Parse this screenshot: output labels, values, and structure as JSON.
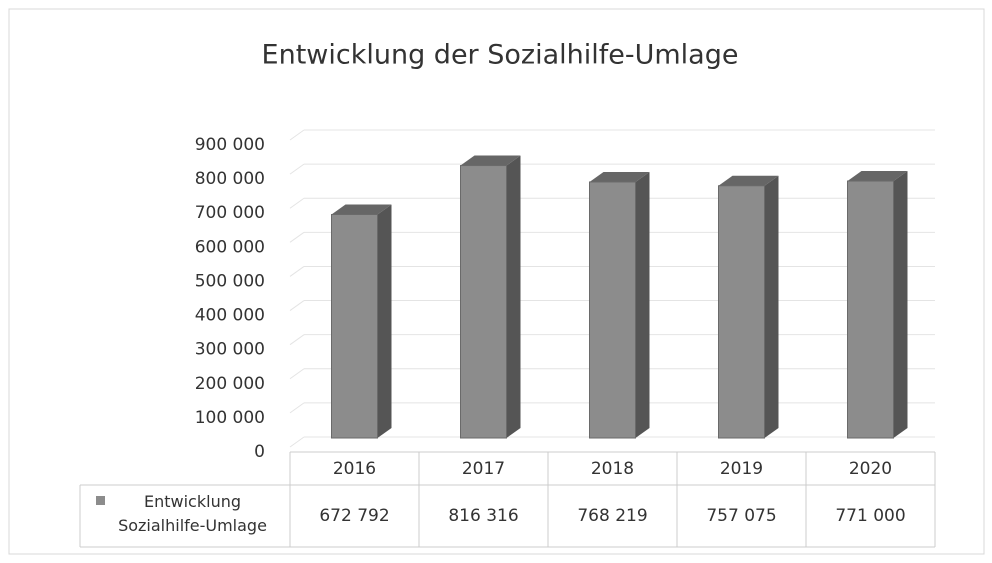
{
  "chart_data": {
    "type": "bar3d",
    "title": "Entwicklung der Sozialhilfe-Umlage",
    "categories": [
      "2016",
      "2017",
      "2018",
      "2019",
      "2020"
    ],
    "series": [
      {
        "name": "Entwicklung Sozialhilfe-Umlage",
        "color": "#8c8c8c",
        "values": [
          672792,
          816316,
          768219,
          757075,
          771000
        ],
        "value_labels": [
          "672 792",
          "816 316",
          "768 219",
          "757 075",
          "771 000"
        ]
      }
    ],
    "ylim": [
      0,
      900000
    ],
    "yticks": [
      0,
      {
        "value": 100000,
        "label": "100 000"
      },
      {
        "value": 200000,
        "label": "200 000"
      },
      {
        "value": 300000,
        "label": "300 000"
      },
      {
        "value": 400000,
        "label": "400 000"
      },
      {
        "value": 500000,
        "label": "500 000"
      },
      {
        "value": 600000,
        "label": "600 000"
      },
      {
        "value": 700000,
        "label": "700 000"
      },
      {
        "value": 800000,
        "label": "800 000"
      },
      {
        "value": 900000,
        "label": "900 000"
      }
    ],
    "grid": true,
    "data_table": true
  }
}
